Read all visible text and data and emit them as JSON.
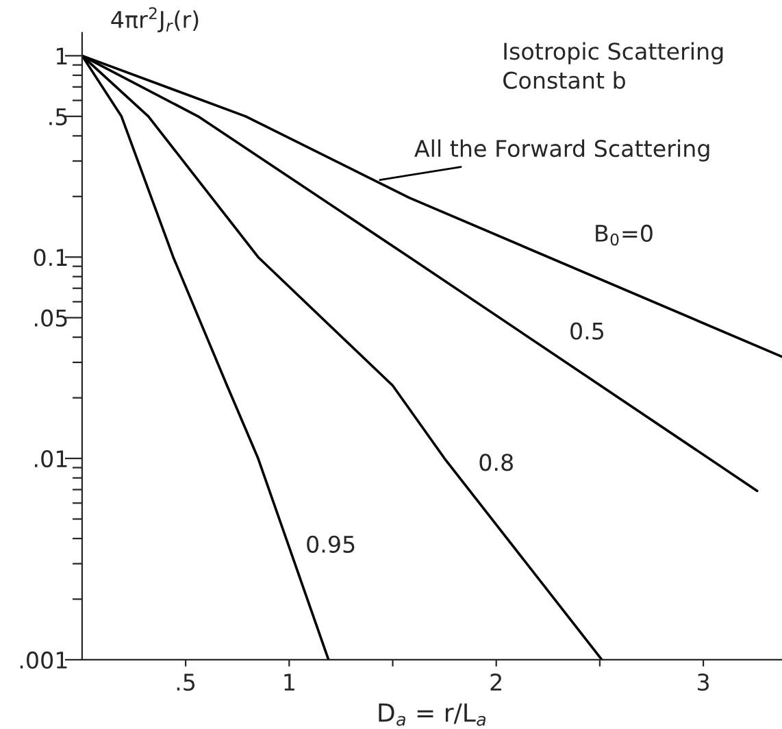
{
  "chart_data": {
    "type": "line",
    "title": "Isotropic Scattering\nConstant b",
    "xlabel": "D$_{a}$ = r/L$_{a}$",
    "ylabel": "4πr$^{2}$J$_{r}$(r)",
    "log": "y",
    "grid": false,
    "legend": false,
    "marker": "none",
    "line_style": "solid",
    "xlim": [
      0,
      3.38
    ],
    "ylim": [
      0.001,
      1.3
    ],
    "xticks": [
      {
        "value": 0.5,
        "label": ".5"
      },
      1,
      {
        "value": 1.5,
        "label": null
      },
      2,
      {
        "value": 2.5,
        "label": null
      },
      3
    ],
    "yticks": [
      {
        "value": 0.001,
        "label": ".001"
      },
      {
        "value": 0.002,
        "label": null
      },
      {
        "value": 0.003,
        "label": null
      },
      {
        "value": 0.004,
        "label": null
      },
      {
        "value": 0.005,
        "label": null
      },
      {
        "value": 0.006,
        "label": null
      },
      {
        "value": 0.007,
        "label": null
      },
      {
        "value": 0.008,
        "label": null
      },
      {
        "value": 0.009,
        "label": null
      },
      {
        "value": 0.01,
        "label": ".01"
      },
      {
        "value": 0.02,
        "label": null
      },
      {
        "value": 0.03,
        "label": null
      },
      {
        "value": 0.04,
        "label": null
      },
      {
        "value": 0.05,
        "label": ".05"
      },
      {
        "value": 0.06,
        "label": null
      },
      {
        "value": 0.07,
        "label": null
      },
      {
        "value": 0.08,
        "label": null
      },
      {
        "value": 0.09,
        "label": null
      },
      {
        "value": 0.1,
        "label": "0.1"
      },
      {
        "value": 0.2,
        "label": null
      },
      {
        "value": 0.3,
        "label": null
      },
      {
        "value": 0.4,
        "label": null
      },
      {
        "value": 0.5,
        "label": ".5"
      },
      {
        "value": 0.6,
        "label": null
      },
      {
        "value": 0.7,
        "label": null
      },
      {
        "value": 0.8,
        "label": null
      },
      {
        "value": 0.9,
        "label": null
      },
      1
    ],
    "series": [
      {
        "name": "B$_{0}$=0",
        "color": "#000000",
        "x": [
          0,
          0.79,
          1.58,
          3.38
        ],
        "values": [
          1,
          0.5,
          0.197,
          0.032
        ]
      },
      {
        "name": "0.5",
        "color": "#000000",
        "x": [
          0,
          0.56,
          1.58,
          3.26
        ],
        "values": [
          1,
          0.5,
          0.1,
          0.0069
        ]
      },
      {
        "name": "0.8",
        "color": "#000000",
        "x": [
          0,
          0.32,
          0.85,
          1.5,
          1.75,
          2.51
        ],
        "values": [
          1,
          0.5,
          0.1,
          0.023,
          0.01,
          0.001
        ]
      },
      {
        "name": "0.95",
        "color": "#000000",
        "x": [
          0,
          0.19,
          0.44,
          0.7,
          0.85,
          1.19
        ],
        "values": [
          1,
          0.5,
          0.1,
          0.023,
          0.01,
          0.001
        ]
      }
    ],
    "annotations": [
      {
        "text": "All the Forward Scattering",
        "x": 1.42,
        "y": 0.24
      }
    ]
  }
}
